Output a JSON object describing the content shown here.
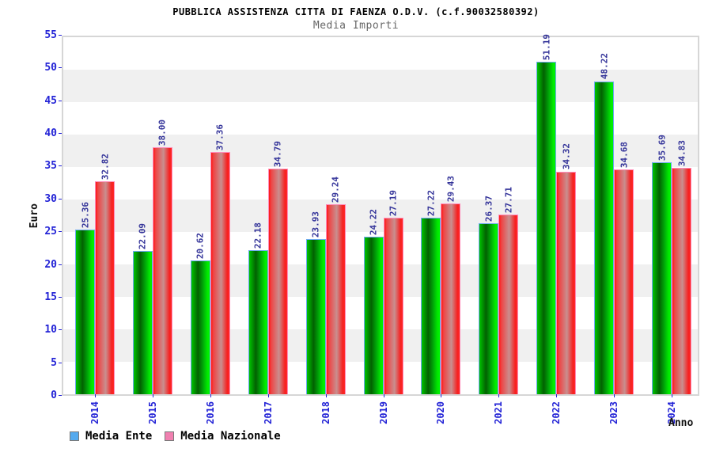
{
  "chart_data": {
    "type": "bar",
    "title": "PUBBLICA ASSISTENZA CITTA DI FAENZA O.D.V. (c.f.90032580392)",
    "subtitle": "Media Importi",
    "xlabel": "Anno",
    "ylabel": "Euro",
    "ylim": [
      0,
      55
    ],
    "yticks": [
      0,
      5,
      10,
      15,
      20,
      25,
      30,
      35,
      40,
      45,
      50,
      55
    ],
    "grid_bands": "alternating white / light-gray every 5 units",
    "legend_position": "bottom-left",
    "value_label_decimals": 2,
    "categories": [
      "2014",
      "2015",
      "2016",
      "2017",
      "2018",
      "2019",
      "2020",
      "2021",
      "2022",
      "2023",
      "2024"
    ],
    "series": [
      {
        "name": "Media Ente",
        "legend_color": "#55aaee",
        "bar_color": "#00c300",
        "bar_border_color": "#6ea9f0",
        "values": [
          25.36,
          22.09,
          20.62,
          22.18,
          23.93,
          24.22,
          27.22,
          26.37,
          51.19,
          48.22,
          35.69
        ]
      },
      {
        "name": "Media Nazionale",
        "legend_color": "#f080b0",
        "bar_color": "#ff1616",
        "bar_border_color": "#ff8cba",
        "values": [
          32.82,
          38.0,
          37.36,
          34.79,
          29.24,
          27.19,
          29.43,
          27.71,
          34.32,
          34.68,
          34.83
        ]
      }
    ],
    "colors": {
      "axis_tick_label": "#2323d6",
      "value_label": "#333399",
      "band_gray": "#f0f0f0",
      "plot_border": "#d6d6d6",
      "title_text": "#000000",
      "subtitle_text": "#666666"
    }
  }
}
